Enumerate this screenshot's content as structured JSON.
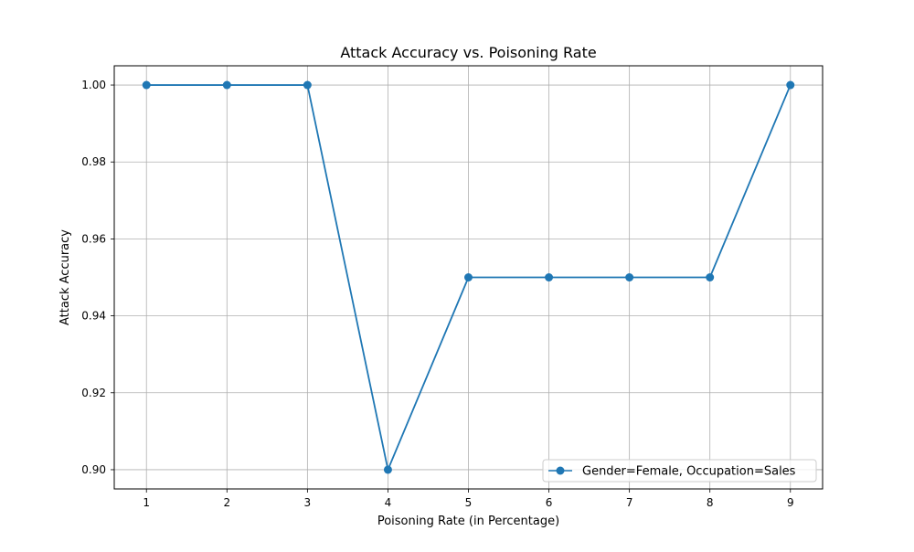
{
  "chart_data": {
    "type": "line",
    "title": "Attack Accuracy vs. Poisoning Rate",
    "xlabel": "Poisoning Rate (in Percentage)",
    "ylabel": "Attack Accuracy",
    "x": [
      1,
      2,
      3,
      4,
      5,
      6,
      7,
      8,
      9
    ],
    "xticks": [
      "1",
      "2",
      "3",
      "4",
      "5",
      "6",
      "7",
      "8",
      "9"
    ],
    "xlim": [
      0.6,
      9.4
    ],
    "yticks": [
      "0.90",
      "0.92",
      "0.94",
      "0.96",
      "0.98",
      "1.00"
    ],
    "ylim": [
      0.895,
      1.005
    ],
    "grid": true,
    "legend_position": "lower-right",
    "series": [
      {
        "name": "Gender=Female, Occupation=Sales",
        "color": "#1f77b4",
        "marker": "circle",
        "values": [
          1.0,
          1.0,
          1.0,
          0.9,
          0.95,
          0.95,
          0.95,
          0.95,
          1.0
        ]
      }
    ]
  }
}
